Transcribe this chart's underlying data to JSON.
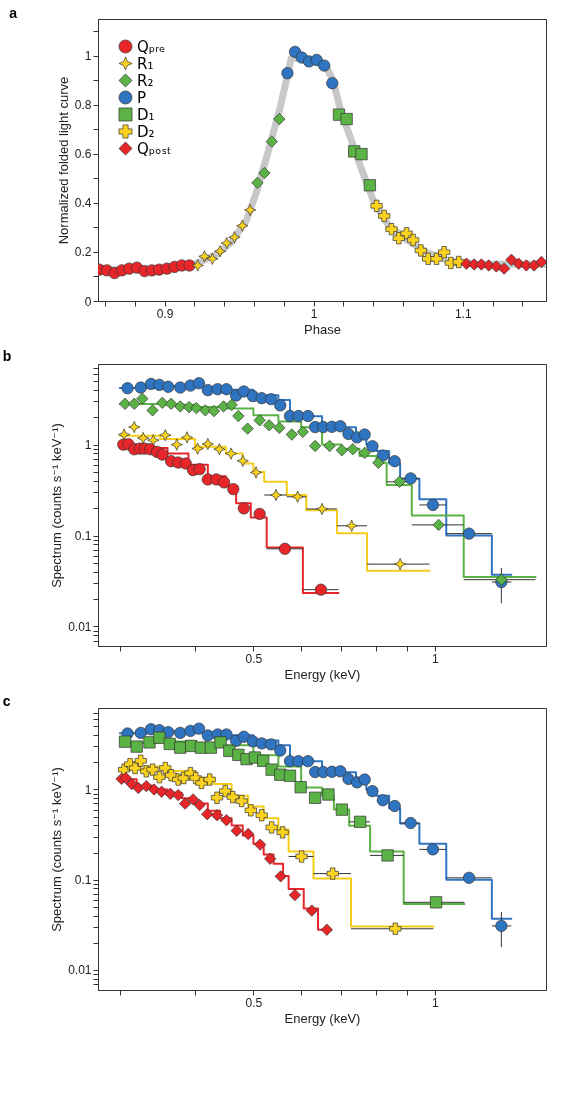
{
  "chart_data": [
    {
      "type": "scatter",
      "title": "a",
      "xlabel": "Phase",
      "ylabel": "Normalized folded light curve",
      "xlim": [
        0.8554,
        1.1558
      ],
      "ylim": [
        0,
        1.15
      ],
      "xticks": [
        {
          "value": 0.86,
          "label": null
        },
        {
          "value": 0.88,
          "label": null
        },
        0.9,
        {
          "value": 0.92,
          "label": null
        },
        {
          "value": 0.94,
          "label": null
        },
        {
          "value": 0.96,
          "label": null
        },
        {
          "value": 0.98,
          "label": null
        },
        1,
        {
          "value": 1.02,
          "label": null
        },
        {
          "value": 1.04,
          "label": null
        },
        {
          "value": 1.06,
          "label": null
        },
        {
          "value": 1.08,
          "label": null
        },
        1.1,
        {
          "value": 1.12,
          "label": null
        },
        {
          "value": 1.14,
          "label": null
        }
      ],
      "yticks": [
        0,
        {
          "value": 0.1,
          "label": null
        },
        0.2,
        {
          "value": 0.3,
          "label": null
        },
        0.4,
        {
          "value": 0.5,
          "label": null
        },
        0.6,
        {
          "value": 0.7,
          "label": null
        },
        0.8,
        {
          "value": 0.9,
          "label": null
        },
        1,
        {
          "value": 1.1,
          "label": null
        }
      ],
      "legend": "top left",
      "series": [
        {
          "type": "line",
          "color": "#c8c8c8",
          "x": [
            0.856,
            0.88,
            0.9,
            0.92,
            0.935,
            0.945,
            0.955,
            0.962,
            0.97,
            0.978,
            0.985,
            0.992,
            1.0,
            1.008,
            1.013,
            1.018,
            1.025,
            1.032,
            1.04,
            1.05,
            1.06,
            1.075,
            1.09,
            1.11,
            1.155
          ],
          "values": [
            0.125,
            0.128,
            0.13,
            0.15,
            0.19,
            0.24,
            0.33,
            0.45,
            0.62,
            0.8,
            0.99,
            0.99,
            0.98,
            0.96,
            0.9,
            0.78,
            0.66,
            0.54,
            0.41,
            0.31,
            0.26,
            0.2,
            0.165,
            0.15,
            0.15
          ]
        },
        {
          "name": "Qₚᵣₑ",
          "color": "#e8262a",
          "marker": "circle",
          "x": [
            0.8563,
            0.8614,
            0.8665,
            0.8714,
            0.8763,
            0.8815,
            0.8866,
            0.8915,
            0.8964,
            0.9016,
            0.9067,
            0.9116,
            0.9167
          ],
          "values": [
            0.128,
            0.125,
            0.114,
            0.125,
            0.132,
            0.136,
            0.122,
            0.125,
            0.128,
            0.132,
            0.139,
            0.145,
            0.145
          ]
        },
        {
          "name": "R₁",
          "color": "#fbd21e",
          "marker": "star",
          "x": [
            0.9223,
            0.9268,
            0.9321,
            0.9373,
            0.9417,
            0.9469,
            0.9522,
            0.9574
          ],
          "values": [
            0.145,
            0.182,
            0.172,
            0.203,
            0.236,
            0.26,
            0.307,
            0.371
          ]
        },
        {
          "name": "R₂",
          "color": "#5bb346",
          "marker": "diamond",
          "x": [
            0.9623,
            0.967,
            0.9719,
            0.977
          ],
          "values": [
            0.482,
            0.522,
            0.65,
            0.742
          ]
        },
        {
          "name": "P",
          "color": "#2f74c0",
          "marker": "circle",
          "x": [
            0.9824,
            0.9875,
            0.992,
            0.9969,
            1.002,
            1.0071,
            1.0125
          ],
          "values": [
            0.929,
            1.016,
            0.993,
            0.977,
            0.983,
            0.96,
            0.888
          ]
        },
        {
          "name": "D₁",
          "color": "#5bb346",
          "marker": "square",
          "x": [
            1.017,
            1.0221,
            1.0272,
            1.0321,
            1.0377
          ],
          "values": [
            0.76,
            0.742,
            0.61,
            0.599,
            0.472
          ]
        },
        {
          "name": "D₂",
          "color": "#fbd21e",
          "marker": "cross",
          "x": [
            1.0422,
            1.0473,
            1.0522,
            1.0571,
            1.0623,
            1.0667,
            1.0719,
            1.0768,
            1.0824,
            1.0875,
            1.092,
            1.0973
          ],
          "values": [
            0.388,
            0.347,
            0.293,
            0.256,
            0.276,
            0.249,
            0.206,
            0.172,
            0.172,
            0.199,
            0.155,
            0.159
          ]
        },
        {
          "name": "Qₚₒₛₜ",
          "color": "#e8262a",
          "marker": "diamond",
          "x": [
            1.1025,
            1.1076,
            1.1125,
            1.1174,
            1.1225,
            1.1277,
            1.1326,
            1.1375,
            1.1426,
            1.1478,
            1.1527
          ],
          "values": [
            0.152,
            0.149,
            0.149,
            0.145,
            0.141,
            0.132,
            0.168,
            0.152,
            0.145,
            0.145,
            0.159
          ]
        }
      ]
    },
    {
      "type": "scatter",
      "title": "b",
      "xlabel": "Energy (keV)",
      "ylabel": "Spectrum (counts s⁻¹ keV⁻¹)",
      "log": "xy",
      "xlim": [
        0.276,
        1.53
      ],
      "ylim": [
        0.0061,
        7.7
      ],
      "xticks": [
        {
          "value": 0.3,
          "label": null
        },
        {
          "value": 0.4,
          "label": null
        },
        0.5,
        {
          "value": 0.6,
          "label": null
        },
        {
          "value": 0.7,
          "label": null
        },
        {
          "value": 0.8,
          "label": null
        },
        {
          "value": 0.9,
          "label": null
        },
        1
      ],
      "yticks": [
        {
          "value": 0.007,
          "label": null
        },
        {
          "value": 0.008,
          "label": null
        },
        {
          "value": 0.009,
          "label": null
        },
        0.01,
        {
          "value": 0.02,
          "label": null
        },
        {
          "value": 0.03,
          "label": null
        },
        {
          "value": 0.04,
          "label": null
        },
        {
          "value": 0.05,
          "label": null
        },
        {
          "value": 0.06,
          "label": null
        },
        {
          "value": 0.07,
          "label": null
        },
        {
          "value": 0.08,
          "label": null
        },
        {
          "value": 0.09,
          "label": null
        },
        0.1,
        {
          "value": 0.2,
          "label": null
        },
        {
          "value": 0.3,
          "label": null
        },
        {
          "value": 0.4,
          "label": null
        },
        {
          "value": 0.5,
          "label": null
        },
        {
          "value": 0.6,
          "label": null
        },
        {
          "value": 0.7,
          "label": null
        },
        {
          "value": 0.8,
          "label": null
        },
        {
          "value": 0.9,
          "label": null
        },
        1,
        {
          "value": 2,
          "label": null
        },
        {
          "value": 3,
          "label": null
        },
        {
          "value": 4,
          "label": null
        },
        {
          "value": 5,
          "label": null
        },
        {
          "value": 6,
          "label": null
        },
        {
          "value": 7,
          "label": null
        }
      ],
      "series": [
        {
          "type": "step",
          "color": "#2f74c0",
          "x": [
            0.3,
            0.35,
            0.4,
            0.45,
            0.5,
            0.55,
            0.575,
            0.62,
            0.65,
            0.7,
            0.74,
            0.77,
            0.8,
            0.84,
            0.876,
            0.943,
            1.045,
            1.244,
            1.34
          ],
          "values": [
            4.2,
            4.4,
            4.3,
            4.0,
            3.5,
            3.1,
            2.1,
            2.05,
            1.6,
            1.55,
            1.25,
            1.0,
            0.85,
            0.62,
            0.42,
            0.25,
            0.1,
            0.037,
            0.037
          ]
        },
        {
          "type": "step",
          "color": "#5bb346",
          "x": [
            0.3,
            0.35,
            0.4,
            0.45,
            0.5,
            0.55,
            0.6,
            0.65,
            0.7,
            0.75,
            0.8,
            0.832,
            0.916,
            1.117,
            1.47
          ],
          "values": [
            2.8,
            2.75,
            2.6,
            2.5,
            2.1,
            1.8,
            1.55,
            1.0,
            0.9,
            0.75,
            0.63,
            0.36,
            0.166,
            0.035,
            0.035
          ]
        },
        {
          "type": "step",
          "color": "#f5cc1a",
          "x": [
            0.3,
            0.35,
            0.4,
            0.45,
            0.48,
            0.5,
            0.521,
            0.568,
            0.612,
            0.688,
            0.772,
            0.98
          ],
          "values": [
            1.25,
            1.15,
            0.95,
            0.8,
            0.62,
            0.5,
            0.39,
            0.28,
            0.19,
            0.106,
            0.041,
            0.041
          ]
        },
        {
          "type": "step",
          "color": "#e8262a",
          "x": [
            0.3,
            0.33,
            0.36,
            0.39,
            0.42,
            0.45,
            0.468,
            0.495,
            0.526,
            0.604,
            0.692
          ],
          "values": [
            1.0,
            0.92,
            0.8,
            0.6,
            0.45,
            0.35,
            0.226,
            0.158,
            0.074,
            0.0234,
            0.0234
          ]
        },
        {
          "color": "#2f74c0",
          "marker": "circle",
          "x": [
            0.309,
            0.325,
            0.338,
            0.349,
            0.361,
            0.378,
            0.393,
            0.406,
            0.42,
            0.436,
            0.451,
            0.468,
            0.482,
            0.499,
            0.516,
            0.535,
            0.554,
            0.575,
            0.594,
            0.616,
            0.633,
            0.653,
            0.675,
            0.697,
            0.719,
            0.743,
            0.765,
            0.788,
            0.82,
            0.858,
            0.912,
            0.993,
            1.14,
            1.29
          ],
          "values": [
            4.17,
            4.24,
            4.65,
            4.54,
            4.32,
            4.24,
            4.46,
            4.73,
            3.97,
            4.07,
            4.07,
            3.47,
            3.84,
            3.41,
            3.24,
            3.16,
            2.7,
            2.06,
            2.06,
            2.06,
            1.56,
            1.56,
            1.57,
            1.59,
            1.31,
            1.2,
            1.29,
            0.96,
            0.76,
            0.657,
            0.425,
            0.217,
            0.105,
            0.0308
          ],
          "xerrors": [
            null,
            null,
            null,
            null,
            null,
            null,
            null,
            null,
            null,
            null,
            null,
            null,
            null,
            null,
            null,
            null,
            null,
            null,
            null,
            null,
            null,
            null,
            null,
            null,
            null,
            null,
            null,
            null,
            null,
            null,
            [
              0.876,
              0.943
            ],
            [
              0.943,
              1.045
            ],
            [
              1.045,
              1.244
            ],
            [
              1.244,
              1.34
            ]
          ],
          "errors": [
            null,
            null,
            null,
            null,
            null,
            null,
            null,
            null,
            null,
            null,
            null,
            null,
            null,
            null,
            null,
            null,
            null,
            null,
            null,
            null,
            null,
            null,
            null,
            null,
            null,
            null,
            null,
            null,
            null,
            null,
            null,
            null,
            null,
            [
              0.018,
              0.044
            ]
          ]
        },
        {
          "color": "#5bb346",
          "marker": "diamond",
          "x": [
            0.306,
            0.317,
            0.327,
            0.34,
            0.353,
            0.365,
            0.378,
            0.391,
            0.402,
            0.416,
            0.43,
            0.446,
            0.46,
            0.472,
            0.489,
            0.512,
            0.531,
            0.552,
            0.579,
            0.604,
            0.633,
            0.669,
            0.701,
            0.731,
            0.765,
            0.806,
            0.874,
            1.015,
            1.29
          ],
          "values": [
            2.81,
            2.81,
            3.19,
            2.38,
            2.88,
            2.81,
            2.63,
            2.58,
            2.52,
            2.38,
            2.34,
            2.63,
            2.74,
            2.06,
            1.5,
            1.85,
            1.63,
            1.53,
            1.29,
            1.38,
            0.967,
            0.967,
            0.867,
            0.889,
            0.811,
            0.63,
            0.39,
            0.131,
            0.0327
          ],
          "xerrors": [
            null,
            null,
            null,
            null,
            null,
            null,
            null,
            null,
            null,
            null,
            null,
            null,
            null,
            null,
            null,
            null,
            null,
            null,
            null,
            null,
            null,
            null,
            null,
            null,
            null,
            null,
            [
              0.832,
              0.916
            ],
            [
              0.916,
              1.117
            ],
            [
              1.117,
              1.47
            ]
          ]
        },
        {
          "color": "#fbd21e",
          "marker": "star",
          "x": [
            0.305,
            0.317,
            0.328,
            0.341,
            0.357,
            0.373,
            0.388,
            0.404,
            0.42,
            0.439,
            0.459,
            0.48,
            0.505,
            0.545,
            0.592,
            0.65,
            0.728,
            0.876
          ],
          "values": [
            1.29,
            1.56,
            1.18,
            1.12,
            1.27,
            1.0,
            1.2,
            0.904,
            1.017,
            0.889,
            0.797,
            0.663,
            0.494,
            0.279,
            0.267,
            0.196,
            0.128,
            0.0485
          ],
          "xerrors": [
            null,
            null,
            null,
            null,
            null,
            null,
            null,
            null,
            null,
            null,
            null,
            null,
            null,
            [
              0.521,
              0.568
            ],
            [
              0.568,
              0.612
            ],
            [
              0.612,
              0.688
            ],
            [
              0.688,
              0.772
            ],
            [
              0.772,
              0.98
            ]
          ]
        },
        {
          "color": "#e8262a",
          "marker": "circle",
          "x": [
            0.304,
            0.31,
            0.317,
            0.324,
            0.33,
            0.337,
            0.346,
            0.353,
            0.365,
            0.375,
            0.386,
            0.397,
            0.407,
            0.42,
            0.434,
            0.447,
            0.463,
            0.482,
            0.512,
            0.564,
            0.647
          ],
          "values": [
            1.0,
            1.008,
            0.889,
            0.904,
            0.904,
            0.889,
            0.831,
            0.777,
            0.657,
            0.635,
            0.619,
            0.524,
            0.537,
            0.414,
            0.414,
            0.384,
            0.324,
            0.199,
            0.173,
            0.0715,
            0.0254
          ],
          "xerrors": [
            null,
            null,
            null,
            null,
            null,
            null,
            null,
            null,
            null,
            null,
            null,
            null,
            null,
            null,
            null,
            null,
            null,
            null,
            null,
            [
              0.526,
              0.604
            ],
            [
              0.604,
              0.692
            ]
          ]
        }
      ]
    },
    {
      "type": "scatter",
      "title": "c",
      "xlabel": "Energy (keV)",
      "ylabel": "Spectrum (counts s⁻¹ keV⁻¹)",
      "log": "xy",
      "xlim": [
        0.276,
        1.53
      ],
      "ylim": [
        0.006,
        8.0
      ],
      "xticks": [
        {
          "value": 0.3,
          "label": null
        },
        {
          "value": 0.4,
          "label": null
        },
        0.5,
        {
          "value": 0.6,
          "label": null
        },
        {
          "value": 0.7,
          "label": null
        },
        {
          "value": 0.8,
          "label": null
        },
        {
          "value": 0.9,
          "label": null
        },
        1
      ],
      "yticks": [
        {
          "value": 0.007,
          "label": null
        },
        {
          "value": 0.008,
          "label": null
        },
        {
          "value": 0.009,
          "label": null
        },
        0.01,
        {
          "value": 0.02,
          "label": null
        },
        {
          "value": 0.03,
          "label": null
        },
        {
          "value": 0.04,
          "label": null
        },
        {
          "value": 0.05,
          "label": null
        },
        {
          "value": 0.06,
          "label": null
        },
        {
          "value": 0.07,
          "label": null
        },
        {
          "value": 0.08,
          "label": null
        },
        {
          "value": 0.09,
          "label": null
        },
        0.1,
        {
          "value": 0.2,
          "label": null
        },
        {
          "value": 0.3,
          "label": null
        },
        {
          "value": 0.4,
          "label": null
        },
        {
          "value": 0.5,
          "label": null
        },
        {
          "value": 0.6,
          "label": null
        },
        {
          "value": 0.7,
          "label": null
        },
        {
          "value": 0.8,
          "label": null
        },
        {
          "value": 0.9,
          "label": null
        },
        1,
        {
          "value": 2,
          "label": null
        },
        {
          "value": 3,
          "label": null
        },
        {
          "value": 4,
          "label": null
        },
        {
          "value": 5,
          "label": null
        },
        {
          "value": 6,
          "label": null
        },
        {
          "value": 7,
          "label": null
        }
      ],
      "series": [
        {
          "type": "step",
          "color": "#2f74c0",
          "x": [
            0.3,
            0.35,
            0.4,
            0.45,
            0.5,
            0.55,
            0.575,
            0.62,
            0.65,
            0.7,
            0.74,
            0.77,
            0.8,
            0.84,
            0.876,
            0.943,
            1.045,
            1.244,
            1.34
          ],
          "values": [
            4.2,
            4.4,
            4.3,
            4.0,
            3.5,
            3.1,
            2.1,
            2.05,
            1.6,
            1.55,
            1.25,
            1.0,
            0.85,
            0.62,
            0.42,
            0.25,
            0.1,
            0.037,
            0.037
          ]
        },
        {
          "type": "step",
          "color": "#5bb346",
          "x": [
            0.3,
            0.35,
            0.4,
            0.45,
            0.5,
            0.55,
            0.6,
            0.65,
            0.68,
            0.721,
            0.781,
            0.888,
            1.12
          ],
          "values": [
            3.3,
            3.4,
            3.1,
            3.1,
            2.4,
            1.8,
            1.05,
            0.86,
            0.6,
            0.396,
            0.205,
            0.054,
            0.054
          ]
        },
        {
          "type": "step",
          "color": "#f5cc1a",
          "x": [
            0.3,
            0.33,
            0.36,
            0.4,
            0.43,
            0.46,
            0.49,
            0.52,
            0.55,
            0.572,
            0.629,
            0.726,
            0.995
          ],
          "values": [
            1.7,
            1.8,
            1.6,
            1.35,
            1.15,
            0.85,
            0.65,
            0.48,
            0.36,
            0.205,
            0.103,
            0.0304,
            0.0304
          ]
        },
        {
          "type": "step",
          "color": "#e8262a",
          "x": [
            0.3,
            0.32,
            0.34,
            0.36,
            0.38,
            0.4,
            0.42,
            0.44,
            0.46,
            0.48,
            0.5,
            0.52,
            0.54,
            0.56,
            0.572,
            0.606,
            0.64,
            0.665
          ],
          "values": [
            1.3,
            1.1,
            1.0,
            0.92,
            0.8,
            0.7,
            0.58,
            0.48,
            0.4,
            0.31,
            0.25,
            0.19,
            0.15,
            0.11,
            0.079,
            0.048,
            0.028,
            0.028
          ]
        },
        {
          "color": "#2f74c0",
          "marker": "circle",
          "x": [
            0.309,
            0.325,
            0.338,
            0.349,
            0.361,
            0.378,
            0.393,
            0.406,
            0.42,
            0.436,
            0.451,
            0.468,
            0.482,
            0.499,
            0.516,
            0.535,
            0.554,
            0.575,
            0.594,
            0.616,
            0.633,
            0.653,
            0.675,
            0.697,
            0.719,
            0.743,
            0.765,
            0.788,
            0.82,
            0.858,
            0.912,
            0.993,
            1.14,
            1.29
          ],
          "values": [
            4.17,
            4.24,
            4.65,
            4.54,
            4.32,
            4.24,
            4.46,
            4.73,
            3.97,
            4.07,
            4.07,
            3.47,
            3.84,
            3.41,
            3.24,
            3.16,
            2.7,
            2.06,
            2.06,
            2.06,
            1.56,
            1.56,
            1.57,
            1.59,
            1.31,
            1.2,
            1.29,
            0.96,
            0.76,
            0.657,
            0.425,
            0.217,
            0.105,
            0.0308
          ],
          "xerrors": [
            null,
            null,
            null,
            null,
            null,
            null,
            null,
            null,
            null,
            null,
            null,
            null,
            null,
            null,
            null,
            null,
            null,
            null,
            null,
            null,
            null,
            null,
            null,
            null,
            null,
            null,
            null,
            null,
            null,
            null,
            [
              0.876,
              0.943
            ],
            [
              0.943,
              1.045
            ],
            [
              1.045,
              1.244
            ],
            [
              1.244,
              1.34
            ]
          ],
          "errors": [
            null,
            null,
            null,
            null,
            null,
            null,
            null,
            null,
            null,
            null,
            null,
            null,
            null,
            null,
            null,
            null,
            null,
            null,
            null,
            null,
            null,
            null,
            null,
            null,
            null,
            null,
            null,
            null,
            null,
            null,
            null,
            null,
            null,
            [
              0.018,
              0.044
            ]
          ]
        },
        {
          "color": "#5bb346",
          "marker": "square",
          "x": [
            0.306,
            0.32,
            0.336,
            0.349,
            0.363,
            0.378,
            0.394,
            0.409,
            0.425,
            0.441,
            0.456,
            0.472,
            0.487,
            0.503,
            0.519,
            0.536,
            0.554,
            0.575,
            0.599,
            0.633,
            0.666,
            0.701,
            0.752,
            0.835,
            1.005
          ],
          "values": [
            3.39,
            2.99,
            3.33,
            3.75,
            3.2,
            2.91,
            3.04,
            2.91,
            2.91,
            3.33,
            2.68,
            2.42,
            2.17,
            2.26,
            2.08,
            1.66,
            1.46,
            1.42,
            1.06,
            0.81,
            0.88,
            0.598,
            0.438,
            0.186,
            0.0562
          ],
          "xerrors": [
            null,
            null,
            null,
            null,
            null,
            null,
            null,
            null,
            null,
            null,
            null,
            null,
            null,
            null,
            null,
            null,
            null,
            null,
            null,
            null,
            null,
            null,
            [
              0.721,
              0.781
            ],
            [
              0.781,
              0.888
            ],
            [
              0.888,
              1.12
            ]
          ]
        },
        {
          "color": "#fbd21e",
          "marker": "cross",
          "x": [
            0.305,
            0.312,
            0.318,
            0.325,
            0.332,
            0.34,
            0.349,
            0.357,
            0.365,
            0.375,
            0.383,
            0.393,
            0.401,
            0.41,
            0.423,
            0.435,
            0.449,
            0.462,
            0.478,
            0.495,
            0.516,
            0.536,
            0.559,
            0.601,
            0.677,
            0.86
          ],
          "values": [
            1.66,
            1.91,
            1.73,
            2.08,
            1.59,
            1.66,
            1.37,
            1.73,
            1.44,
            1.29,
            1.34,
            1.52,
            1.34,
            1.18,
            1.29,
            0.81,
            0.96,
            0.824,
            0.745,
            0.588,
            0.519,
            0.38,
            0.335,
            0.181,
            0.117,
            0.0286
          ],
          "xerrors": [
            null,
            null,
            null,
            null,
            null,
            null,
            null,
            null,
            null,
            null,
            null,
            null,
            null,
            null,
            null,
            null,
            null,
            null,
            null,
            null,
            null,
            null,
            null,
            [
              0.572,
              0.629
            ],
            [
              0.629,
              0.726
            ],
            [
              0.726,
              0.995
            ]
          ]
        },
        {
          "color": "#e8262a",
          "marker": "diamond",
          "x": [
            0.302,
            0.307,
            0.314,
            0.322,
            0.332,
            0.342,
            0.352,
            0.364,
            0.375,
            0.385,
            0.397,
            0.407,
            0.419,
            0.435,
            0.451,
            0.469,
            0.49,
            0.513,
            0.533,
            0.555,
            0.586,
            0.625,
            0.662
          ],
          "values": [
            1.31,
            1.34,
            1.15,
            1.04,
            1.09,
            1.0,
            0.943,
            0.896,
            0.867,
            0.697,
            0.777,
            0.673,
            0.532,
            0.519,
            0.457,
            0.349,
            0.321,
            0.245,
            0.171,
            0.109,
            0.0676,
            0.0455,
            0.0279
          ]
        }
      ]
    }
  ]
}
